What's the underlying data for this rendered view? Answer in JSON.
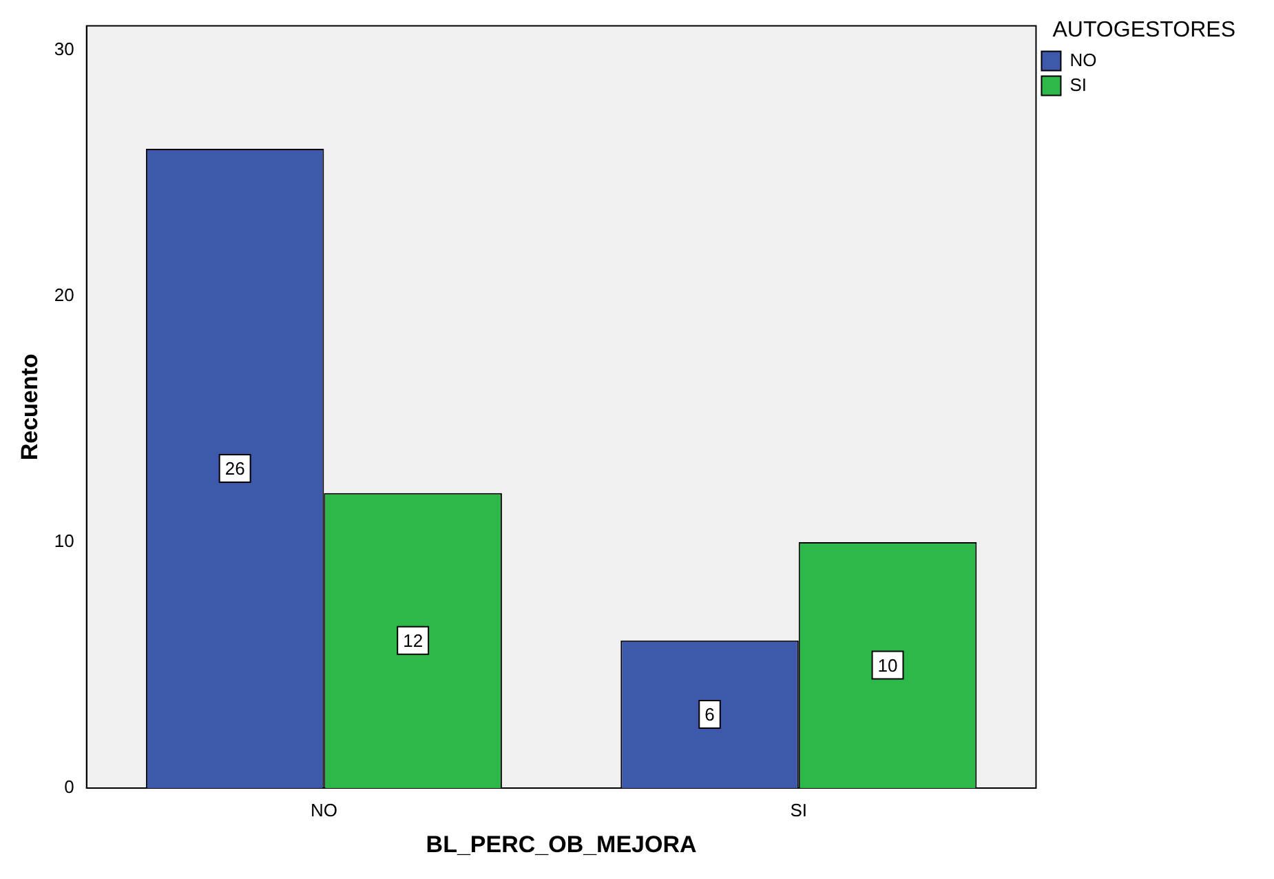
{
  "chart_data": {
    "type": "bar",
    "xlabel": "BL_PERC_OB_MEJORA",
    "ylabel": "Recuento",
    "legend_title": "AUTOGESTORES",
    "categories": [
      "NO",
      "SI"
    ],
    "series": [
      {
        "name": "NO",
        "color": "#3e58ac",
        "values": [
          26,
          6
        ]
      },
      {
        "name": "SI",
        "color": "#2db84a",
        "values": [
          12,
          10
        ]
      }
    ],
    "ylim": [
      0,
      31
    ],
    "yticks": [
      0,
      10,
      20,
      30
    ],
    "grid": false,
    "legend": "top right",
    "data_labels": true
  }
}
